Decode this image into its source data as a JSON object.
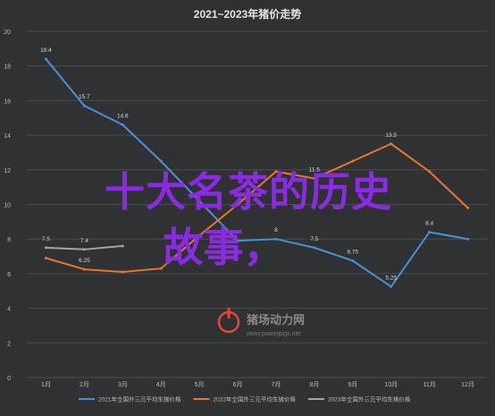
{
  "chart_data": {
    "type": "line",
    "title": "2021~2023年猪价走势",
    "xlabel": "",
    "ylabel": "",
    "x": [
      "1月",
      "2月",
      "3月",
      "4月",
      "5月",
      "6月",
      "7月",
      "8月",
      "9月",
      "10月",
      "11月",
      "12月"
    ],
    "ylim": [
      0,
      20
    ],
    "yticks": [
      "0",
      "2",
      "4",
      "6",
      "8",
      "10",
      "12",
      "14",
      "16",
      "18",
      "20"
    ],
    "grid": true,
    "legend_position": "bottom",
    "series": [
      {
        "name": "2021年全国外三元平均生猪价格",
        "color": "#4a90d9",
        "values": [
          18.4,
          15.7,
          14.6,
          12.5,
          10.2,
          7.9,
          8,
          7.5,
          6.75,
          5.25,
          8.4,
          8
        ],
        "labels": [
          "18.4",
          "15.7",
          "14.6",
          "",
          "",
          "",
          "8",
          "7.5",
          "6.75",
          "5.25",
          "8.4",
          ""
        ]
      },
      {
        "name": "2022年全国外三元平均生猪价格",
        "color": "#e8772e",
        "values": [
          6.9,
          6.25,
          6.1,
          6.3,
          8.2,
          10,
          11.9,
          11.5,
          12.5,
          13.5,
          11.9,
          9.8
        ],
        "labels": [
          "",
          "6.25",
          "",
          "",
          "",
          "",
          "",
          "11.5",
          "",
          "13.5",
          "",
          ""
        ]
      },
      {
        "name": "2023年全国外三元平均生猪价格",
        "color": "#a5a5a5",
        "values": [
          7.5,
          7.4,
          7.6,
          null,
          null,
          null,
          null,
          null,
          null,
          null,
          null,
          null
        ],
        "labels": [
          "7.5",
          "7.4",
          "",
          "",
          "",
          "",
          "",
          "",
          "",
          "",
          "",
          ""
        ]
      }
    ]
  },
  "overlay": {
    "line1": "十大名茶的历史",
    "line2": "故事，"
  },
  "watermark": {
    "brand": "猪场动力网",
    "url": "www.powerpigs.net"
  }
}
